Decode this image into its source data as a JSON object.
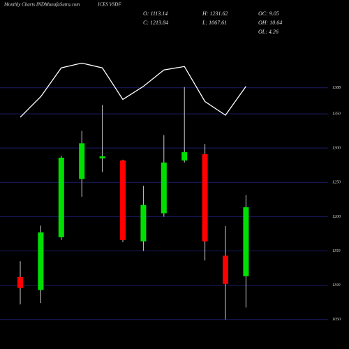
{
  "chart_data": {
    "type": "candlestick",
    "title": "Monthly Charts INDMunafaSutra.com",
    "subtitle": "ICES VSDF",
    "stats": [
      "O: 1113.14",
      "H: 1231.62",
      "OC: 9.05",
      "C: 1213.84",
      "L: 1067.61",
      "OH: 10.64",
      "OL: 4.26"
    ],
    "categories": [
      null,
      null,
      null,
      null,
      null,
      null,
      null,
      null,
      null,
      null,
      null,
      null
    ],
    "open": [
      1112,
      1093,
      1170,
      1255,
      1285,
      1282,
      1164,
      1205,
      1282,
      1291,
      1143,
      1113.14
    ],
    "high": [
      1135,
      1187,
      1289,
      1325,
      1363,
      1283,
      1245,
      1319,
      1389,
      1306,
      1186,
      1231.62
    ],
    "low": [
      1072,
      1074,
      1166,
      1229,
      1265,
      1163,
      1150,
      1200,
      1279,
      1136,
      1050,
      1067.61
    ],
    "close": [
      1096,
      1177,
      1286,
      1307,
      1288,
      1166,
      1217,
      1279,
      1294,
      1164,
      1102,
      1213.84
    ],
    "up_color": "#00e000",
    "down_color": "#ff0000",
    "line": {
      "color": "#ffffff",
      "values": [
        1345,
        1375,
        1417,
        1424,
        1417,
        1371,
        1390,
        1414,
        1419,
        1368,
        1348,
        1390
      ]
    },
    "ylim": [
      1007,
      1516
    ],
    "yticks": [
      1050,
      1100,
      1150,
      1200,
      1250,
      1300,
      1350,
      1388
    ],
    "grid": true
  }
}
